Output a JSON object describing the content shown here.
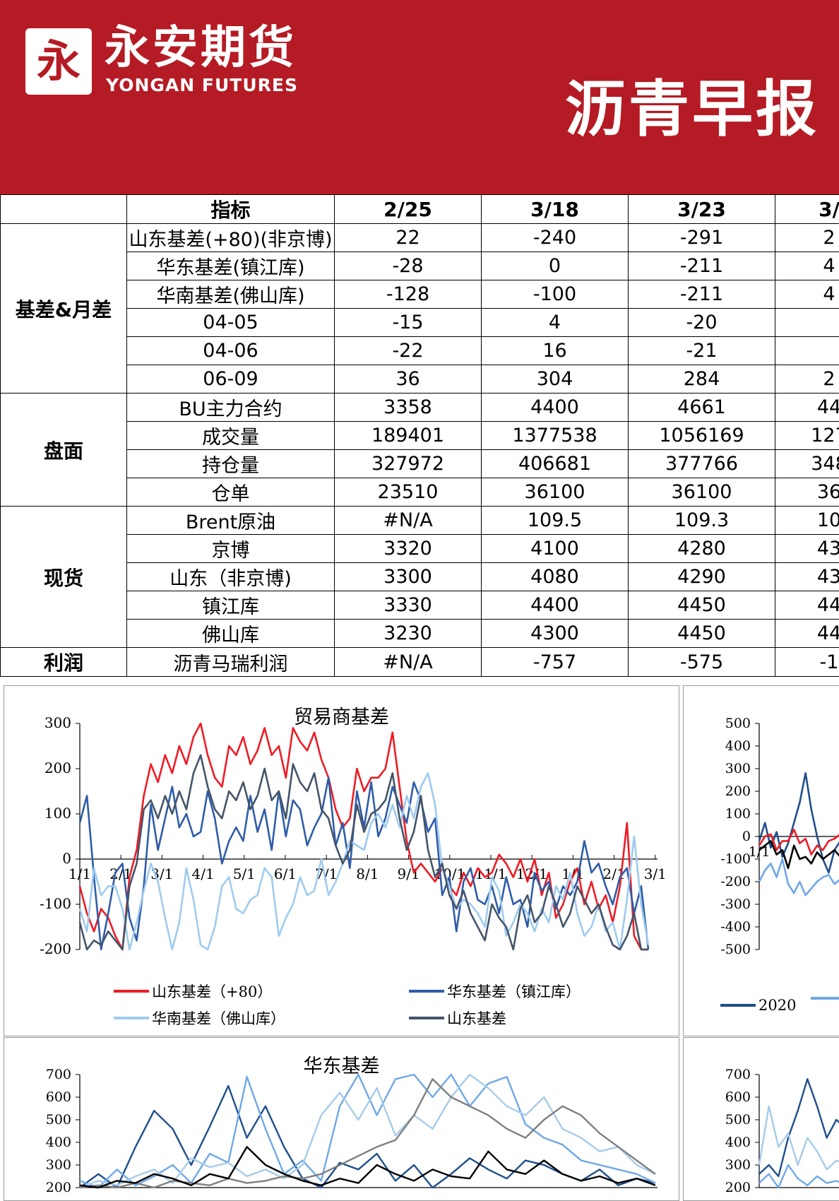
{
  "header": {
    "logo_glyph": "永",
    "brand_cn": "永安期货",
    "brand_en": "YONGAN FUTURES",
    "report_title": "沥青早报"
  },
  "table": {
    "columns": [
      "",
      "指标",
      "2/25",
      "3/18",
      "3/23",
      "3/"
    ],
    "groups": [
      {
        "name": "基差&月差",
        "rows": [
          {
            "label": "山东基差(+80)(非京博)",
            "values": [
              "22",
              "-240",
              "-291",
              "2"
            ]
          },
          {
            "label": "华东基差(镇江库)",
            "values": [
              "-28",
              "0",
              "-211",
              "4"
            ]
          },
          {
            "label": "华南基差(佛山库)",
            "values": [
              "-128",
              "-100",
              "-211",
              "4"
            ]
          },
          {
            "label": "04-05",
            "values": [
              "-15",
              "4",
              "-20",
              ""
            ]
          },
          {
            "label": "04-06",
            "values": [
              "-22",
              "16",
              "-21",
              ""
            ]
          },
          {
            "label": "06-09",
            "values": [
              "36",
              "304",
              "284",
              "2"
            ]
          }
        ]
      },
      {
        "name": "盘面",
        "rows": [
          {
            "label": "BU主力合约",
            "values": [
              "3358",
              "4400",
              "4661",
              "44"
            ]
          },
          {
            "label": "成交量",
            "values": [
              "189401",
              "1377538",
              "1056169",
              "127"
            ]
          },
          {
            "label": "持仓量",
            "values": [
              "327972",
              "406681",
              "377766",
              "348"
            ]
          },
          {
            "label": "仓单",
            "values": [
              "23510",
              "36100",
              "36100",
              "36"
            ]
          }
        ]
      },
      {
        "name": "现货",
        "rows": [
          {
            "label": "Brent原油",
            "values": [
              "#N/A",
              "109.5",
              "109.3",
              "10"
            ]
          },
          {
            "label": "京博",
            "values": [
              "3320",
              "4100",
              "4280",
              "43"
            ]
          },
          {
            "label": "山东（非京博)",
            "values": [
              "3300",
              "4080",
              "4290",
              "43"
            ]
          },
          {
            "label": "镇江库",
            "values": [
              "3330",
              "4400",
              "4450",
              "44"
            ]
          },
          {
            "label": "佛山库",
            "values": [
              "3230",
              "4300",
              "4450",
              "44"
            ]
          }
        ]
      },
      {
        "name": "利润",
        "rows": [
          {
            "label": "沥青马瑞利润",
            "values": [
              "#N/A",
              "-757",
              "-575",
              "-1"
            ]
          }
        ]
      }
    ]
  },
  "chart_data": [
    {
      "type": "line",
      "title": "贸易商基差",
      "ylim": [
        -200,
        300
      ],
      "yticks": [
        300,
        200,
        100,
        0,
        -100,
        -200
      ],
      "xticks": [
        "1/1",
        "2/1",
        "3/1",
        "4/1",
        "5/1",
        "6/1",
        "7/1",
        "8/1",
        "9/1",
        "10/1",
        "11/1",
        "12/1",
        "1/1",
        "2/1",
        "3/1"
      ],
      "series": [
        {
          "name": "山东基差（+80）",
          "color": "#ee1c25",
          "values": [
            -60,
            -120,
            -160,
            -110,
            -130,
            -170,
            -200,
            -40,
            20,
            140,
            210,
            170,
            230,
            190,
            250,
            210,
            270,
            300,
            230,
            180,
            160,
            250,
            230,
            270,
            210,
            240,
            290,
            230,
            250,
            180,
            290,
            260,
            240,
            280,
            220,
            180,
            110,
            70,
            90,
            200,
            150,
            180,
            180,
            200,
            280,
            160,
            40,
            -30,
            -10,
            -30,
            -50,
            -20,
            -60,
            -80,
            -30,
            -60,
            -20,
            -40,
            -30,
            10,
            -10,
            -40,
            0,
            -50,
            0,
            -80,
            -30,
            -130,
            -100,
            -50,
            -20,
            -100,
            -50,
            -110,
            -80,
            -140,
            -60,
            80,
            -170,
            -200,
            -200
          ]
        },
        {
          "name": "华东基差（镇江库）",
          "color": "#2f5ca8",
          "values": [
            80,
            140,
            -40,
            -200,
            -120,
            -30,
            -10,
            -130,
            -180,
            -60,
            120,
            20,
            90,
            160,
            70,
            100,
            50,
            60,
            150,
            90,
            -10,
            40,
            70,
            40,
            140,
            60,
            110,
            20,
            150,
            50,
            130,
            110,
            30,
            70,
            100,
            180,
            30,
            80,
            -20,
            150,
            70,
            170,
            50,
            90,
            160,
            120,
            80,
            170,
            130,
            60,
            90,
            -80,
            -40,
            -160,
            -50,
            -20,
            -90,
            -100,
            -60,
            -120,
            -40,
            -100,
            -90,
            -150,
            -30,
            -70,
            -50,
            -110,
            -60,
            -80,
            -50,
            40,
            -30,
            -10,
            -60,
            -100,
            -40,
            -20,
            -120,
            -60,
            -200
          ]
        },
        {
          "name": "华南基差（佛山库）",
          "color": "#9fcbef",
          "values": [
            -110,
            -160,
            -20,
            -80,
            -60,
            -60,
            -110,
            -200,
            -140,
            -70,
            -10,
            -50,
            -130,
            -200,
            -140,
            -20,
            -90,
            -190,
            -200,
            -150,
            -60,
            -40,
            -110,
            -120,
            -90,
            -80,
            -20,
            -40,
            -170,
            -130,
            -100,
            -40,
            -80,
            -70,
            0,
            -80,
            -50,
            -10,
            40,
            30,
            20,
            80,
            100,
            70,
            120,
            70,
            140,
            90,
            160,
            190,
            120,
            -20,
            -60,
            -110,
            -90,
            -100,
            -120,
            -150,
            -40,
            -70,
            -170,
            -140,
            -100,
            -120,
            -160,
            -110,
            -140,
            -60,
            -90,
            -30,
            -120,
            -170,
            -150,
            -100,
            -160,
            -140,
            -200,
            -90,
            50,
            -100,
            -190
          ]
        },
        {
          "name": "山东基差",
          "color": "#44546a",
          "values": [
            -140,
            -200,
            -180,
            -190,
            -160,
            -180,
            -200,
            -60,
            -10,
            110,
            130,
            90,
            140,
            100,
            150,
            110,
            190,
            230,
            160,
            110,
            90,
            150,
            130,
            170,
            110,
            140,
            200,
            130,
            150,
            90,
            210,
            170,
            150,
            190,
            110,
            90,
            30,
            -10,
            20,
            120,
            60,
            100,
            110,
            130,
            190,
            90,
            20,
            60,
            140,
            20,
            -40,
            -10,
            -80,
            -110,
            -70,
            -120,
            -150,
            -180,
            -100,
            -130,
            -150,
            -200,
            -110,
            -80,
            -140,
            -120,
            -60,
            -100,
            -150,
            -120,
            -60,
            -90,
            -120,
            -100,
            -150,
            -190,
            -200,
            -170,
            -120,
            -200,
            -200
          ]
        }
      ]
    },
    {
      "type": "line",
      "title": "",
      "ylim": [
        -500,
        500
      ],
      "yticks": [
        500,
        400,
        300,
        200,
        100,
        0,
        -100,
        -200,
        -300,
        -400,
        -500
      ],
      "xticks": [
        "1/1"
      ],
      "series": [
        {
          "name": "2020",
          "color": "#1f4e8c",
          "values": [
            -20,
            60,
            -50,
            20,
            -90,
            -30,
            60,
            150,
            280,
            120,
            0,
            -100,
            -160,
            -60,
            -20,
            40
          ]
        },
        {
          "name": "",
          "color": "#6fa8e8",
          "values": [
            -200,
            -150,
            -120,
            -180,
            -100,
            -210,
            -250,
            -200,
            -260,
            -230,
            -200,
            -180,
            -170,
            -210,
            -190,
            -160
          ]
        },
        {
          "name": "",
          "color": "#ee1c25",
          "values": [
            -40,
            0,
            10,
            -60,
            -20,
            -20,
            30,
            -30,
            -10,
            -80,
            -40,
            -60,
            -20,
            -10,
            10,
            0
          ]
        },
        {
          "name": "",
          "color": "#000000",
          "values": [
            -60,
            -40,
            -20,
            -80,
            -60,
            -140,
            -40,
            -100,
            -90,
            -120,
            -70,
            -100,
            -80,
            -60,
            -90,
            -40
          ]
        }
      ]
    },
    {
      "type": "line",
      "title": "华东基差",
      "ylim": [
        200,
        700
      ],
      "yticks": [
        700,
        600,
        500,
        400,
        300,
        200
      ],
      "xticks": [],
      "series": [
        {
          "name": "",
          "color": "#1f4e8c",
          "values": [
            200,
            260,
            180,
            380,
            540,
            460,
            300,
            470,
            650,
            420,
            560,
            380,
            240,
            200,
            310,
            280,
            350,
            230,
            300,
            200,
            260,
            330,
            280,
            240,
            320,
            300,
            260,
            230,
            280,
            210,
            240,
            220
          ]
        },
        {
          "name": "",
          "color": "#6fa8e8",
          "values": [
            230,
            200,
            280,
            210,
            250,
            300,
            220,
            350,
            310,
            690,
            460,
            260,
            320,
            230,
            560,
            700,
            520,
            680,
            700,
            600,
            700,
            560,
            660,
            690,
            480,
            420,
            390,
            320,
            300,
            280,
            260,
            220
          ]
        },
        {
          "name": "",
          "color": "#a6cce8",
          "values": [
            200,
            230,
            210,
            250,
            280,
            220,
            330,
            290,
            310,
            250,
            280,
            240,
            300,
            520,
            620,
            500,
            640,
            430,
            520,
            460,
            600,
            700,
            640,
            560,
            520,
            600,
            460,
            420,
            360,
            380,
            300,
            260
          ]
        },
        {
          "name": "",
          "color": "#7f7f7f",
          "values": [
            200,
            210,
            200,
            220,
            200,
            230,
            220,
            210,
            240,
            220,
            230,
            250,
            240,
            260,
            300,
            340,
            380,
            410,
            520,
            680,
            600,
            560,
            520,
            460,
            420,
            500,
            560,
            520,
            440,
            380,
            320,
            260
          ]
        },
        {
          "name": "",
          "color": "#000000",
          "values": [
            210,
            200,
            230,
            220,
            260,
            240,
            210,
            260,
            240,
            380,
            300,
            260,
            230,
            210,
            240,
            220,
            300,
            260,
            230,
            280,
            250,
            240,
            360,
            280,
            260,
            320,
            260,
            230,
            250,
            220,
            240,
            210
          ]
        }
      ]
    },
    {
      "type": "line",
      "title": "",
      "ylim": [
        200,
        700
      ],
      "yticks": [
        700,
        600,
        500,
        400,
        300,
        200
      ],
      "xticks": [],
      "series": [
        {
          "name": "",
          "color": "#1f4e8c",
          "values": [
            260,
            300,
            250,
            420,
            540,
            680,
            560,
            420,
            500,
            460
          ]
        },
        {
          "name": "",
          "color": "#a6cce8",
          "values": [
            300,
            560,
            380,
            440,
            300,
            420,
            360,
            280,
            320,
            300
          ]
        },
        {
          "name": "",
          "color": "#6fa8e8",
          "values": [
            220,
            260,
            200,
            300,
            240,
            210,
            250,
            220,
            230,
            210
          ]
        }
      ]
    }
  ]
}
